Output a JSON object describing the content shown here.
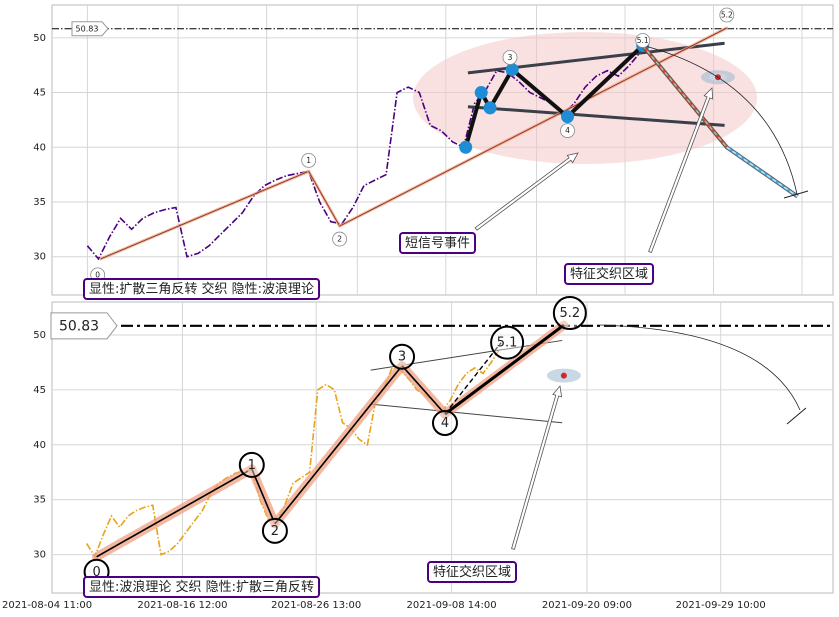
{
  "chart_data": [
    {
      "type": "line",
      "x": [
        0,
        5,
        10,
        15,
        20,
        25,
        30,
        35,
        40,
        45,
        50,
        55,
        60,
        65,
        70,
        75,
        80,
        85,
        90,
        95,
        100,
        105,
        110,
        115,
        120,
        125,
        130,
        135,
        140,
        145,
        150,
        155,
        160,
        165,
        170,
        175,
        180,
        185,
        190,
        195,
        200,
        205,
        210,
        215,
        220,
        225,
        230,
        235,
        240,
        245,
        250
      ],
      "series": [
        {
          "color": "#4b0082",
          "values": [
            31,
            29.8,
            31.8,
            33.5,
            32.5,
            33.5,
            34,
            34.3,
            34.5,
            30,
            30.3,
            31,
            32,
            33,
            34,
            35.5,
            36.5,
            37,
            37.4,
            37.6,
            37.8,
            35,
            33.2,
            33,
            34.5,
            36.5,
            37,
            37.5,
            45,
            45.5,
            45,
            42,
            41.5,
            40.5,
            40,
            44,
            45.2,
            47,
            46.8,
            46,
            45,
            44.5,
            44,
            43,
            44,
            45.5,
            46.5,
            47,
            46.5,
            47.5,
            48.7
          ]
        }
      ],
      "xlim": [
        -16,
        337
      ],
      "xticks": [
        0,
        41,
        81,
        122,
        162,
        203,
        243,
        283,
        323
      ],
      "ylim": [
        26.5,
        53
      ],
      "yticks": [
        30,
        35,
        40,
        45,
        50
      ],
      "grid": true,
      "ref_line": 50.83,
      "waves": {
        "labels": [
          "0",
          "1",
          "2",
          "3",
          "4",
          "5.1",
          "5.2"
        ],
        "x": [
          6,
          100,
          114,
          191,
          217,
          251,
          289
        ],
        "y": [
          29.8,
          37.8,
          32.8,
          47.2,
          42.8,
          49.3,
          50.9
        ]
      },
      "pivots": {
        "x": [
          171,
          178,
          182,
          192,
          217,
          251
        ],
        "y": [
          40,
          45,
          43.6,
          47.1,
          42.8,
          49.3
        ],
        "color": "#1f8dd6"
      },
      "triangle": {
        "upper": {
          "x": [
            172,
            288
          ],
          "y": [
            46.8,
            49.5
          ]
        },
        "lower": {
          "x": [
            172,
            288
          ],
          "y": [
            43.7,
            42
          ]
        }
      },
      "projection": {
        "x": [
          251,
          289,
          321
        ],
        "y": [
          49.3,
          40,
          35.5
        ]
      },
      "marker": {
        "x": 285,
        "y": 46.4
      },
      "annotations": [
        {
          "text": "显性:扩散三角反转 交织 隐性:波浪理论",
          "color": "#1f77b4"
        },
        {
          "text": "短信号事件",
          "color": "#c0392b"
        },
        {
          "text": "特征交织区域",
          "color": "#1f77b4"
        }
      ]
    },
    {
      "type": "line",
      "x": [
        0,
        5,
        10,
        15,
        20,
        25,
        30,
        35,
        40,
        45,
        50,
        55,
        60,
        65,
        70,
        75,
        80,
        85,
        90,
        95,
        100,
        105,
        110,
        115,
        120,
        125,
        130,
        135,
        140,
        145,
        150,
        155,
        160,
        165,
        170,
        175,
        180,
        185,
        190,
        195,
        200,
        205,
        210,
        215,
        220,
        225,
        230,
        235,
        240,
        245,
        250
      ],
      "series": [
        {
          "color": "#e8a317",
          "values": [
            31,
            29.8,
            31.8,
            33.5,
            32.5,
            33.5,
            34,
            34.3,
            34.5,
            30,
            30.3,
            31,
            32,
            33,
            34,
            35.5,
            36.5,
            37,
            37.4,
            37.6,
            37.8,
            35,
            33.2,
            33,
            34.5,
            36.5,
            37,
            37.5,
            45,
            45.5,
            45,
            42,
            41.5,
            40.5,
            40,
            44,
            45.2,
            47,
            46.8,
            46,
            45,
            44.5,
            44,
            43,
            44,
            45.5,
            46.5,
            47,
            46.5,
            47.5,
            48.7
          ]
        }
      ],
      "xlim": [
        -21,
        452
      ],
      "xticks": [
        {
          "value": -24,
          "label": "2021-08-04 11:00"
        },
        {
          "value": 58,
          "label": "2021-08-16 12:00"
        },
        {
          "value": 139,
          "label": "2021-08-26 13:00"
        },
        {
          "value": 221,
          "label": "2021-09-08 14:00"
        },
        {
          "value": 303,
          "label": "2021-09-20 09:00"
        },
        {
          "value": 384,
          "label": "2021-09-29 10:00"
        }
      ],
      "ylim": [
        26.5,
        53
      ],
      "yticks": [
        30,
        35,
        40,
        45,
        50
      ],
      "grid": true,
      "ref_line": 50.83,
      "waves": {
        "labels": [
          "0",
          "1",
          "2",
          "3",
          "4",
          "5.1",
          "5.2"
        ],
        "x": [
          6,
          100,
          114,
          191,
          217,
          251,
          289
        ],
        "y": [
          29.8,
          37.8,
          32.8,
          47.2,
          42.8,
          49.3,
          50.9
        ]
      },
      "triangle": {
        "upper": {
          "x": [
            172,
            288
          ],
          "y": [
            46.8,
            49.5
          ]
        },
        "lower": {
          "x": [
            172,
            288
          ],
          "y": [
            43.7,
            42
          ]
        }
      },
      "marker": {
        "x": 289,
        "y": 46.3
      },
      "annotations": [
        {
          "text": "显性:波浪理论 交织 隐性:扩散三角反转",
          "color": "#1f77b4"
        },
        {
          "text": "特征交织区域",
          "color": "#1f77b4"
        }
      ]
    }
  ]
}
